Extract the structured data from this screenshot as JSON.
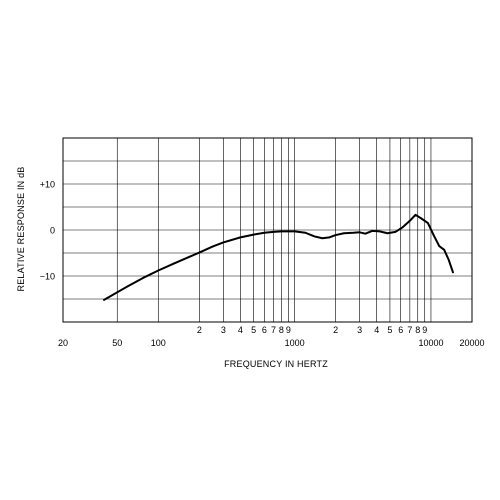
{
  "chart_data": {
    "type": "line",
    "title": "",
    "xlabel": "FREQUENCY IN HERTZ",
    "ylabel": "RELATIVE RESPONSE IN dB",
    "x_scale": "log",
    "xlim": [
      20,
      20000
    ],
    "ylim": [
      -20,
      20
    ],
    "grid": true,
    "x_major_labels": [
      {
        "value": 20,
        "label": "20"
      },
      {
        "value": 50,
        "label": "50"
      },
      {
        "value": 100,
        "label": "100"
      },
      {
        "value": 1000,
        "label": "1000"
      },
      {
        "value": 10000,
        "label": "10000"
      },
      {
        "value": 20000,
        "label": "20000"
      }
    ],
    "x_minor_labels": [
      {
        "value": 200,
        "label": "2"
      },
      {
        "value": 300,
        "label": "3"
      },
      {
        "value": 400,
        "label": "4"
      },
      {
        "value": 500,
        "label": "5"
      },
      {
        "value": 600,
        "label": "6"
      },
      {
        "value": 700,
        "label": "7"
      },
      {
        "value": 800,
        "label": "8"
      },
      {
        "value": 900,
        "label": "9"
      },
      {
        "value": 2000,
        "label": "2"
      },
      {
        "value": 3000,
        "label": "3"
      },
      {
        "value": 4000,
        "label": "4"
      },
      {
        "value": 5000,
        "label": "5"
      },
      {
        "value": 6000,
        "label": "6"
      },
      {
        "value": 7000,
        "label": "7"
      },
      {
        "value": 8000,
        "label": "8"
      },
      {
        "value": 9000,
        "label": "9"
      }
    ],
    "x_gridlines": [
      50,
      100,
      200,
      300,
      400,
      500,
      600,
      700,
      800,
      900,
      1000,
      2000,
      3000,
      4000,
      5000,
      6000,
      7000,
      8000,
      9000,
      10000
    ],
    "y_gridlines": [
      -15,
      -10,
      -5,
      0,
      5,
      10,
      15
    ],
    "y_tick_labels": [
      {
        "value": 10,
        "label": "+10"
      },
      {
        "value": 0,
        "label": "0"
      },
      {
        "value": -10,
        "label": "−10"
      }
    ],
    "series": [
      {
        "color": "#000000",
        "points": [
          [
            40,
            -15.2
          ],
          [
            60,
            -12.2
          ],
          [
            80,
            -10.2
          ],
          [
            100,
            -8.8
          ],
          [
            130,
            -7.3
          ],
          [
            170,
            -5.8
          ],
          [
            200,
            -4.9
          ],
          [
            250,
            -3.6
          ],
          [
            300,
            -2.7
          ],
          [
            400,
            -1.6
          ],
          [
            500,
            -1.0
          ],
          [
            600,
            -0.6
          ],
          [
            700,
            -0.4
          ],
          [
            800,
            -0.3
          ],
          [
            1000,
            -0.3
          ],
          [
            1200,
            -0.6
          ],
          [
            1400,
            -1.4
          ],
          [
            1600,
            -1.8
          ],
          [
            1800,
            -1.6
          ],
          [
            2000,
            -1.1
          ],
          [
            2300,
            -0.7
          ],
          [
            2700,
            -0.6
          ],
          [
            3000,
            -0.5
          ],
          [
            3300,
            -0.8
          ],
          [
            3700,
            -0.2
          ],
          [
            4200,
            -0.3
          ],
          [
            4800,
            -0.7
          ],
          [
            5500,
            -0.4
          ],
          [
            6200,
            0.6
          ],
          [
            7000,
            2.0
          ],
          [
            7700,
            3.3
          ],
          [
            8500,
            2.5
          ],
          [
            9500,
            1.5
          ],
          [
            10500,
            -1.2
          ],
          [
            11500,
            -3.5
          ],
          [
            12500,
            -4.3
          ],
          [
            13500,
            -6.5
          ],
          [
            14500,
            -9.2
          ]
        ]
      }
    ]
  }
}
